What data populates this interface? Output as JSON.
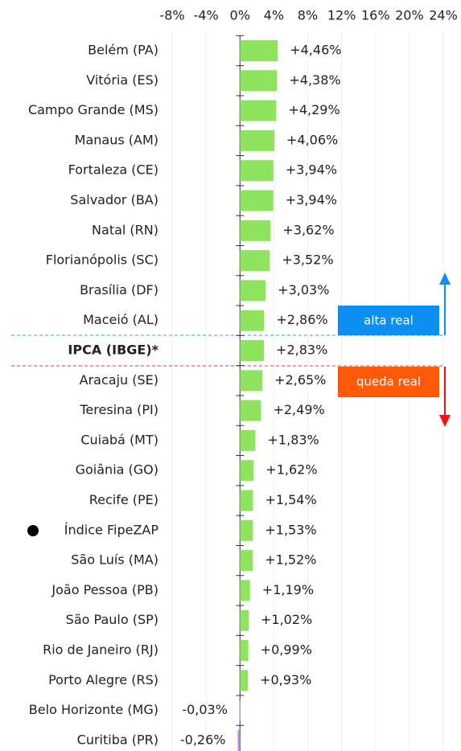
{
  "chart_data": {
    "type": "bar",
    "orientation": "horizontal",
    "categories": [
      "Belém (PA)",
      "Vitória (ES)",
      "Campo Grande (MS)",
      "Manaus (AM)",
      "Fortaleza (CE)",
      "Salvador (BA)",
      "Natal (RN)",
      "Florianópolis (SC)",
      "Brasília (DF)",
      "Maceió (AL)",
      "IPCA (IBGE)*",
      "Aracaju (SE)",
      "Teresina (PI)",
      "Cuiabá (MT)",
      "Goiânia (GO)",
      "Recife (PE)",
      "Índice FipeZAP",
      "São Luís (MA)",
      "João Pessoa (PB)",
      "São Paulo (SP)",
      "Rio de Janeiro (RJ)",
      "Porto Alegre (RS)",
      "Belo Horizonte (MG)",
      "Curitiba (PR)"
    ],
    "values": [
      4.46,
      4.38,
      4.29,
      4.06,
      3.94,
      3.94,
      3.62,
      3.52,
      3.03,
      2.86,
      2.83,
      2.65,
      2.49,
      1.83,
      1.62,
      1.54,
      1.53,
      1.52,
      1.19,
      1.02,
      0.99,
      0.93,
      -0.03,
      -0.26
    ],
    "value_labels": [
      "+4,46%",
      "+4,38%",
      "+4,29%",
      "+4,06%",
      "+3,94%",
      "+3,94%",
      "+3,62%",
      "+3,52%",
      "+3,03%",
      "+2,86%",
      "+2,83%",
      "+2,65%",
      "+2,49%",
      "+1,83%",
      "+1,62%",
      "+1,54%",
      "+1,53%",
      "+1,52%",
      "+1,19%",
      "+1,02%",
      "+0,99%",
      "+0,93%",
      "-0,03%",
      "-0,26%"
    ],
    "color": "#8fe35f",
    "negative_color": "#b98cf0",
    "xlim": [
      -8,
      24
    ],
    "xticks": [
      {
        "value": -8,
        "label": "-8%"
      },
      {
        "value": -4,
        "label": "-4%"
      },
      {
        "value": 0,
        "label": "0%"
      },
      {
        "value": 4,
        "label": "4%"
      },
      {
        "value": 8,
        "label": "8%"
      },
      {
        "value": 12,
        "label": "12%"
      },
      {
        "value": 16,
        "label": "16%"
      },
      {
        "value": 20,
        "label": "20%"
      },
      {
        "value": 24,
        "label": "24%"
      }
    ],
    "grid": true,
    "annotations": [
      "alta real",
      "queda real"
    ]
  }
}
